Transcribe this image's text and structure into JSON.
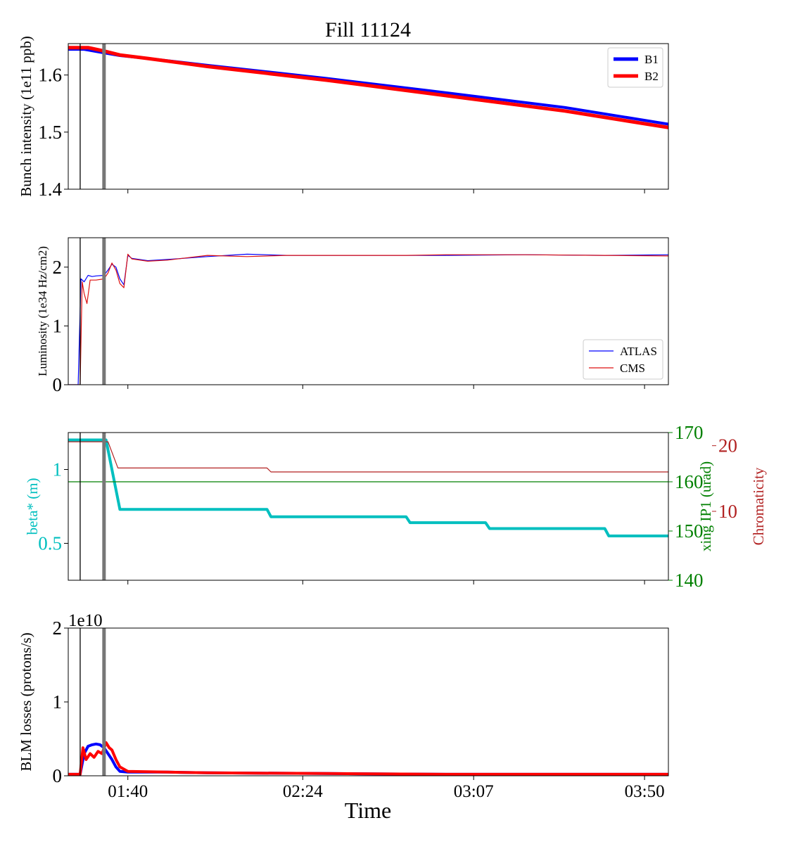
{
  "figure": {
    "title": "Fill 11124",
    "xlabel": "Time",
    "x_tick_labels": [
      "01:40",
      "02:24",
      "03:07",
      "03:50"
    ],
    "x_tick_times": [
      "01:40",
      "02:24",
      "03:07",
      "03:50"
    ],
    "x_range": [
      "01:25",
      "03:56"
    ],
    "vertical_markers": [
      {
        "time": "01:28",
        "color": "#000000",
        "style": "thin"
      },
      {
        "time": "01:34",
        "color": "#777777",
        "style": "thick"
      }
    ]
  },
  "chart_data": [
    {
      "type": "line",
      "ylabel": "Bunch intensity (1e11 ppb)",
      "ylim": [
        1.4,
        1.655
      ],
      "yticks": [
        1.4,
        1.5,
        1.6
      ],
      "legend": "top-right",
      "series": [
        {
          "name": "B1",
          "color": "#0000ff",
          "width": 4,
          "points": [
            [
              "01:25",
              1.645
            ],
            [
              "01:29",
              1.645
            ],
            [
              "01:33",
              1.64
            ],
            [
              "01:38",
              1.634
            ],
            [
              "01:45",
              1.629
            ],
            [
              "02:00",
              1.617
            ],
            [
              "02:30",
              1.594
            ],
            [
              "03:00",
              1.569
            ],
            [
              "03:30",
              1.543
            ],
            [
              "03:56",
              1.514
            ]
          ]
        },
        {
          "name": "B2",
          "color": "#ff0000",
          "width": 5,
          "points": [
            [
              "01:25",
              1.648
            ],
            [
              "01:30",
              1.648
            ],
            [
              "01:34",
              1.642
            ],
            [
              "01:38",
              1.635
            ],
            [
              "01:45",
              1.629
            ],
            [
              "02:00",
              1.615
            ],
            [
              "02:30",
              1.591
            ],
            [
              "03:00",
              1.564
            ],
            [
              "03:30",
              1.537
            ],
            [
              "03:56",
              1.508
            ]
          ]
        }
      ]
    },
    {
      "type": "line",
      "ylabel": "Luminosity (1e34 Hz/cm2)",
      "ylim": [
        0,
        2.5
      ],
      "yticks": [
        0,
        1,
        2
      ],
      "legend": "bottom-right",
      "series": [
        {
          "name": "ATLAS",
          "color": "#0000ff",
          "width": 1.2,
          "points": [
            [
              "01:25",
              0
            ],
            [
              "01:27.5",
              0
            ],
            [
              "01:28.2",
              1.8
            ],
            [
              "01:29",
              1.75
            ],
            [
              "01:30",
              1.86
            ],
            [
              "01:31",
              1.84
            ],
            [
              "01:32",
              1.85
            ],
            [
              "01:34",
              1.86
            ],
            [
              "01:35",
              1.95
            ],
            [
              "01:36",
              2.05
            ],
            [
              "01:37",
              2.0
            ],
            [
              "01:38",
              1.8
            ],
            [
              "01:39",
              1.7
            ],
            [
              "01:40",
              2.2
            ],
            [
              "01:41",
              2.15
            ],
            [
              "01:45",
              2.11
            ],
            [
              "01:50",
              2.13
            ],
            [
              "02:00",
              2.18
            ],
            [
              "02:10",
              2.22
            ],
            [
              "02:20",
              2.2
            ],
            [
              "02:30",
              2.2
            ],
            [
              "02:50",
              2.2
            ],
            [
              "03:00",
              2.2
            ],
            [
              "03:20",
              2.21
            ],
            [
              "03:40",
              2.2
            ],
            [
              "03:56",
              2.21
            ]
          ]
        },
        {
          "name": "CMS",
          "color": "#dd1111",
          "width": 1.2,
          "points": [
            [
              "01:25",
              0
            ],
            [
              "01:28",
              0
            ],
            [
              "01:28.5",
              1.75
            ],
            [
              "01:29",
              1.55
            ],
            [
              "01:29.7",
              1.38
            ],
            [
              "01:30.5",
              1.78
            ],
            [
              "01:32",
              1.78
            ],
            [
              "01:34",
              1.8
            ],
            [
              "01:35",
              1.9
            ],
            [
              "01:36",
              2.07
            ],
            [
              "01:37",
              1.95
            ],
            [
              "01:38",
              1.72
            ],
            [
              "01:39",
              1.65
            ],
            [
              "01:40",
              2.22
            ],
            [
              "01:41",
              2.14
            ],
            [
              "01:45",
              2.1
            ],
            [
              "01:50",
              2.12
            ],
            [
              "02:00",
              2.2
            ],
            [
              "02:10",
              2.18
            ],
            [
              "02:20",
              2.2
            ],
            [
              "02:30",
              2.2
            ],
            [
              "02:50",
              2.2
            ],
            [
              "03:00",
              2.21
            ],
            [
              "03:20",
              2.21
            ],
            [
              "03:40",
              2.2
            ],
            [
              "03:56",
              2.19
            ]
          ]
        }
      ]
    },
    {
      "type": "line",
      "ylabel": "beta* (m)",
      "ylabel_color": "#00bfbf",
      "ylim": [
        0.25,
        1.25
      ],
      "yticks": [
        0.5,
        1.0
      ],
      "right_axes": [
        {
          "label": "xing IP1 (urad)",
          "color": "#008000",
          "ylim": [
            140,
            170
          ],
          "yticks": [
            140,
            150,
            160,
            170
          ]
        },
        {
          "label": "Chromaticity",
          "color": "#b22222",
          "ylim": [
            -0.5,
            22.0
          ],
          "yticks": [
            10,
            20
          ]
        }
      ],
      "series": [
        {
          "name": "beta*",
          "axis": "left",
          "color": "#00bfbf",
          "width": 4,
          "points": [
            [
              "01:25",
              1.2
            ],
            [
              "01:34.5",
              1.2
            ],
            [
              "01:38",
              0.73
            ],
            [
              "02:15",
              0.73
            ],
            [
              "02:16",
              0.68
            ],
            [
              "02:50",
              0.68
            ],
            [
              "02:51",
              0.64
            ],
            [
              "03:10",
              0.64
            ],
            [
              "03:11",
              0.6
            ],
            [
              "03:40",
              0.6
            ],
            [
              "03:41",
              0.55
            ],
            [
              "03:56",
              0.55
            ]
          ]
        },
        {
          "name": "xing IP1",
          "axis": "right1",
          "color": "#008000",
          "width": 1.2,
          "points": [
            [
              "01:25",
              160
            ],
            [
              "03:56",
              160
            ]
          ]
        },
        {
          "name": "Chromaticity",
          "axis": "right2",
          "color": "#b22222",
          "width": 1.2,
          "points": [
            [
              "01:25",
              20.6
            ],
            [
              "01:35",
              20.6
            ],
            [
              "01:37.5",
              16.6
            ],
            [
              "02:15",
              16.6
            ],
            [
              "02:16",
              16.0
            ],
            [
              "03:56",
              16.0
            ]
          ]
        }
      ]
    },
    {
      "type": "line",
      "ylabel": "BLM losses (protons/s)",
      "ylim": [
        0,
        2
      ],
      "yticks": [
        0,
        1,
        2
      ],
      "offset_text": "1e10",
      "series": [
        {
          "name": "B1",
          "color": "#0000ff",
          "width": 4,
          "points": [
            [
              "01:25",
              0.02
            ],
            [
              "01:28",
              0.02
            ],
            [
              "01:29",
              0.3
            ],
            [
              "01:30",
              0.4
            ],
            [
              "01:31",
              0.42
            ],
            [
              "01:32",
              0.43
            ],
            [
              "01:33",
              0.42
            ],
            [
              "01:34",
              0.38
            ],
            [
              "01:35",
              0.3
            ],
            [
              "01:36",
              0.22
            ],
            [
              "01:37",
              0.12
            ],
            [
              "01:38",
              0.06
            ],
            [
              "01:40",
              0.05
            ],
            [
              "01:50",
              0.05
            ],
            [
              "02:00",
              0.04
            ],
            [
              "02:30",
              0.03
            ],
            [
              "03:00",
              0.02
            ],
            [
              "03:56",
              0.02
            ]
          ]
        },
        {
          "name": "B2",
          "color": "#ff0000",
          "width": 4,
          "points": [
            [
              "01:25",
              0.02
            ],
            [
              "01:28",
              0.02
            ],
            [
              "01:28.7",
              0.38
            ],
            [
              "01:29.5",
              0.22
            ],
            [
              "01:30.5",
              0.3
            ],
            [
              "01:31.5",
              0.25
            ],
            [
              "01:32.5",
              0.33
            ],
            [
              "01:33.5",
              0.3
            ],
            [
              "01:34.5",
              0.45
            ],
            [
              "01:35.3",
              0.38
            ],
            [
              "01:36",
              0.35
            ],
            [
              "01:37",
              0.22
            ],
            [
              "01:38",
              0.12
            ],
            [
              "01:40",
              0.06
            ],
            [
              "01:50",
              0.05
            ],
            [
              "02:00",
              0.04
            ],
            [
              "02:30",
              0.03
            ],
            [
              "03:00",
              0.02
            ],
            [
              "03:56",
              0.02
            ]
          ]
        }
      ]
    }
  ]
}
